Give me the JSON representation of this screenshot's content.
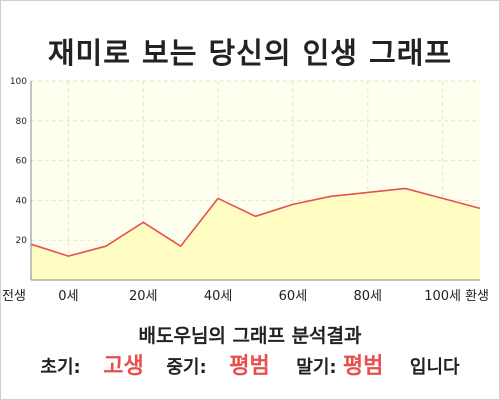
{
  "title": "재미로 보는 당신의 인생 그래프",
  "chart_data": {
    "type": "area",
    "x": [
      "전생",
      "0세",
      "",
      "20세",
      "",
      "40세",
      "",
      "60세",
      "",
      "80세",
      "",
      "100세",
      "환생"
    ],
    "xtick_labels": [
      "전생",
      "0세",
      "20세",
      "40세",
      "60세",
      "80세",
      "100세",
      "환생"
    ],
    "values": [
      18,
      12,
      17,
      29,
      17,
      41,
      32,
      38,
      42,
      44,
      46,
      41,
      36
    ],
    "ylim": [
      0,
      100
    ],
    "yticks": [
      20,
      40,
      60,
      80,
      100
    ],
    "grid": true,
    "colors": {
      "line": "#e8504f",
      "fill": "#fffdc2",
      "plot_bg": "#fffff0",
      "grid": "#e6e6c8"
    }
  },
  "subtitle": "배도우님의 그래프 분석결과",
  "result": {
    "early_label": "초기:",
    "early_value": "고생",
    "mid_label": "중기:",
    "mid_value": "평범",
    "late_label": "말기:",
    "late_value": "평범",
    "suffix": "입니다"
  }
}
